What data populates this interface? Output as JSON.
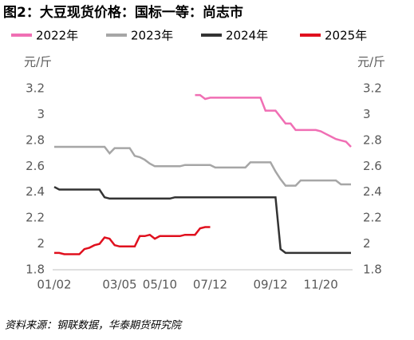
{
  "chart_data": {
    "type": "line",
    "title": "图2：大豆现货价格：国标一等：尚志市",
    "y_label": "元/斤",
    "y2_label": "元/斤",
    "source": "资料来源：钢联数据，华泰期货研究院",
    "categories": [
      "01/02",
      null,
      null,
      null,
      null,
      null,
      null,
      null,
      null,
      null,
      null,
      null,
      null,
      "03/05",
      null,
      null,
      null,
      null,
      null,
      null,
      null,
      "05/10",
      null,
      null,
      null,
      null,
      null,
      null,
      null,
      null,
      null,
      "07/12",
      null,
      null,
      null,
      null,
      null,
      null,
      null,
      null,
      null,
      null,
      null,
      "09/12",
      null,
      null,
      null,
      null,
      null,
      null,
      null,
      null,
      null,
      "11/20",
      null,
      null,
      null,
      null,
      null,
      null
    ],
    "series": [
      {
        "name": "2022年",
        "color": "#f06fb4",
        "values": [
          null,
          null,
          null,
          null,
          null,
          null,
          null,
          null,
          null,
          null,
          null,
          null,
          null,
          null,
          null,
          null,
          null,
          null,
          null,
          null,
          null,
          null,
          null,
          null,
          null,
          null,
          null,
          null,
          3.15,
          3.15,
          3.12,
          3.13,
          3.13,
          3.13,
          3.13,
          3.13,
          3.13,
          3.13,
          3.13,
          3.13,
          3.13,
          3.13,
          3.03,
          3.03,
          3.03,
          2.98,
          2.93,
          2.93,
          2.88,
          2.88,
          2.88,
          2.88,
          2.88,
          2.87,
          2.85,
          2.83,
          2.81,
          2.8,
          2.79,
          2.75
        ]
      },
      {
        "name": "2023年",
        "color": "#a6a6a6",
        "values": [
          2.75,
          2.75,
          2.75,
          2.75,
          2.75,
          2.75,
          2.75,
          2.75,
          2.75,
          2.75,
          2.75,
          2.7,
          2.74,
          2.74,
          2.74,
          2.74,
          2.68,
          2.67,
          2.65,
          2.62,
          2.6,
          2.6,
          2.6,
          2.6,
          2.6,
          2.6,
          2.61,
          2.61,
          2.61,
          2.61,
          2.61,
          2.61,
          2.59,
          2.59,
          2.59,
          2.59,
          2.59,
          2.59,
          2.59,
          2.63,
          2.63,
          2.63,
          2.63,
          2.63,
          2.56,
          2.5,
          2.45,
          2.45,
          2.45,
          2.49,
          2.49,
          2.49,
          2.49,
          2.49,
          2.49,
          2.49,
          2.49,
          2.46,
          2.46,
          2.46
        ]
      },
      {
        "name": "2024年",
        "color": "#333333",
        "values": [
          2.44,
          2.42,
          2.42,
          2.42,
          2.42,
          2.42,
          2.42,
          2.42,
          2.42,
          2.42,
          2.36,
          2.35,
          2.35,
          2.35,
          2.35,
          2.35,
          2.35,
          2.35,
          2.35,
          2.35,
          2.35,
          2.35,
          2.35,
          2.35,
          2.36,
          2.36,
          2.36,
          2.36,
          2.36,
          2.36,
          2.36,
          2.36,
          2.36,
          2.36,
          2.36,
          2.36,
          2.36,
          2.36,
          2.36,
          2.36,
          2.36,
          2.36,
          2.36,
          2.36,
          2.36,
          1.96,
          1.93,
          1.93,
          1.93,
          1.93,
          1.93,
          1.93,
          1.93,
          1.93,
          1.93,
          1.93,
          1.93,
          1.93,
          1.93,
          1.93
        ]
      },
      {
        "name": "2025年",
        "color": "#e0101e",
        "values": [
          1.93,
          1.93,
          1.92,
          1.92,
          1.92,
          1.92,
          1.96,
          1.97,
          1.99,
          2.0,
          2.05,
          2.04,
          1.99,
          1.98,
          1.98,
          1.98,
          1.98,
          2.06,
          2.06,
          2.07,
          2.04,
          2.06,
          2.06,
          2.06,
          2.06,
          2.06,
          2.07,
          2.07,
          2.07,
          2.12,
          2.13,
          2.13,
          null,
          null,
          null,
          null,
          null,
          null,
          null,
          null,
          null,
          null,
          null,
          null,
          null,
          null,
          null,
          null,
          null,
          null,
          null,
          null,
          null,
          null,
          null,
          null,
          null,
          null,
          null,
          null
        ]
      }
    ],
    "ylim": [
      1.8,
      3.2
    ],
    "yticks": [
      1.8,
      2,
      2.2,
      2.4,
      2.6,
      2.8,
      3,
      3.2
    ],
    "y2lim": [
      1.8,
      3.2
    ],
    "y2ticks": [
      1.8,
      2,
      2.2,
      2.4,
      2.6,
      2.8,
      3,
      3.2
    ],
    "grid": false
  }
}
